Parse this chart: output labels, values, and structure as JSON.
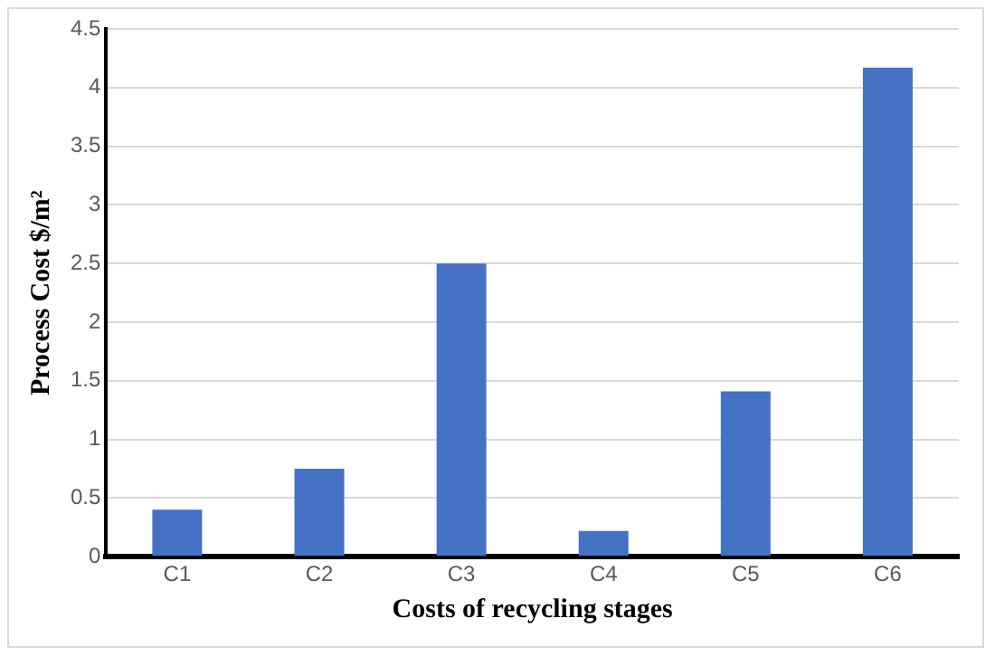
{
  "chart_data": {
    "type": "bar",
    "xlabel": "Costs of recycling stages",
    "ylabel": "Process Cost $/m²",
    "categories": [
      "C1",
      "C2",
      "C3",
      "C4",
      "C5",
      "C6"
    ],
    "values": [
      0.4,
      0.75,
      2.5,
      0.22,
      1.41,
      4.17
    ],
    "color": "#4472c4",
    "ylim": [
      0,
      4.5
    ],
    "yticks": [
      0,
      0.5,
      1,
      1.5,
      2,
      2.5,
      3,
      3.5,
      4,
      4.5
    ],
    "grid": "y",
    "legend": false
  }
}
